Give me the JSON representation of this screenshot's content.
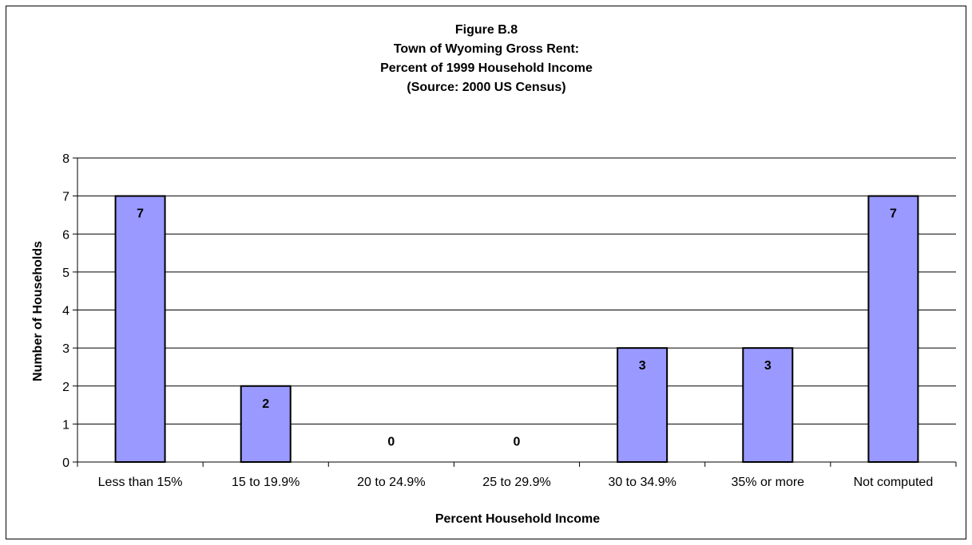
{
  "chart_data": {
    "type": "bar",
    "title_lines": [
      "Figure B.8",
      "Town of Wyoming Gross Rent:",
      "Percent of 1999 Household Income",
      "(Source:  2000 US Census)"
    ],
    "categories": [
      "Less than 15%",
      "15 to 19.9%",
      "20 to 24.9%",
      "25 to 29.9%",
      "30 to 34.9%",
      "35% or more",
      "Not computed"
    ],
    "values": [
      7,
      2,
      0,
      0,
      3,
      3,
      7
    ],
    "data_labels": [
      "7",
      "2",
      "0",
      "0",
      "3",
      "3",
      "7"
    ],
    "xlabel": "Percent Household Income",
    "ylabel": "Number of Households",
    "ylim": [
      0,
      8
    ],
    "yticks": [
      "0",
      "1",
      "2",
      "3",
      "4",
      "5",
      "6",
      "7",
      "8"
    ],
    "grid": true,
    "legend": "none",
    "colors": {
      "bar_fill": "#9999ff",
      "bar_stroke": "#000000",
      "gridline": "#000000"
    }
  }
}
